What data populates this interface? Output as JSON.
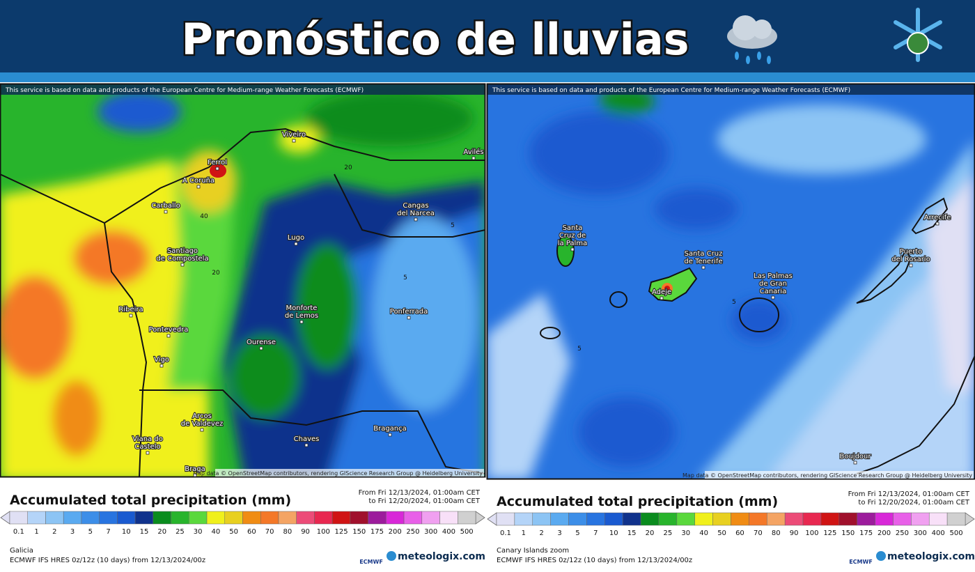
{
  "header": {
    "title": "Pronóstico de lluvias"
  },
  "panels": [
    {
      "attribution": "This service is based on data and products of the European Centre for Medium-range Weather Forecasts (ECMWF)",
      "places": [
        {
          "lines": [
            "Ferrol"
          ]
        },
        {
          "lines": [
            "A Coruña"
          ]
        },
        {
          "lines": [
            "Viveiro"
          ]
        },
        {
          "lines": [
            "Avilés"
          ]
        },
        {
          "lines": [
            "Carballo"
          ]
        },
        {
          "lines": [
            "Cangas",
            "del Narcea"
          ]
        },
        {
          "lines": [
            "Lugo"
          ]
        },
        {
          "lines": [
            "Santiago",
            "de Compostela"
          ]
        },
        {
          "lines": [
            "Ribeira"
          ]
        },
        {
          "lines": [
            "Monforte",
            "de Lemos"
          ]
        },
        {
          "lines": [
            "Pontevedra"
          ]
        },
        {
          "lines": [
            "Ponferrada"
          ]
        },
        {
          "lines": [
            "Ourense"
          ]
        },
        {
          "lines": [
            "Vigo"
          ]
        },
        {
          "lines": [
            "Arcos",
            "de Valdevez"
          ]
        },
        {
          "lines": [
            "Bragança"
          ]
        },
        {
          "lines": [
            "Chaves"
          ]
        },
        {
          "lines": [
            "Viana do",
            "Castelo"
          ]
        },
        {
          "lines": [
            "Braga"
          ]
        }
      ],
      "contours": [
        "40",
        "20",
        "20",
        "5",
        "5"
      ],
      "map_credit": "Map data © OpenStreetMap contributors, rendering GIScience Research Group @ Heidelberg University",
      "legend": {
        "title": "Accumulated total precipitation (mm)",
        "from": "From Fri 12/13/2024, 01:00am CET",
        "to": "to Fri 12/20/2024, 01:00am CET",
        "scale": [
          0.1,
          1,
          2,
          3,
          5,
          7,
          10,
          15,
          20,
          25,
          30,
          40,
          50,
          60,
          70,
          80,
          90,
          100,
          125,
          150,
          175,
          200,
          250,
          300,
          400,
          500
        ],
        "colors": [
          "#e0e0f4",
          "#b4d4f8",
          "#8cc4f4",
          "#5aaaf0",
          "#3c8ee8",
          "#2874e0",
          "#1a5ad0",
          "#10328c",
          "#0a8c1e",
          "#28b42c",
          "#5ad83c",
          "#f0f01c",
          "#e8d020",
          "#f08c14",
          "#f47828",
          "#f4a464",
          "#ec4c78",
          "#e82850",
          "#d01414",
          "#a0102c",
          "#9c1c9c",
          "#d828d8",
          "#e860e8",
          "#f0a0f0",
          "#f8e0f8",
          "#d0d0d0"
        ]
      },
      "region": "Galicia",
      "model": "ECMWF IFS HRES 0z/12z (10 days) from 12/13/2024/00z",
      "ecmwf": "ECMWF",
      "brand": "meteologix.com"
    },
    {
      "attribution": "This service is based on data and products of the European Centre for Medium-range Weather Forecasts (ECMWF)",
      "places": [
        {
          "lines": [
            "Santa",
            "Cruz de",
            "la Palma"
          ]
        },
        {
          "lines": [
            "Santa Cruz",
            "de Tenerife"
          ]
        },
        {
          "lines": [
            "Adeje"
          ]
        },
        {
          "lines": [
            "Las Palmas",
            "de Gran",
            "Canaria"
          ]
        },
        {
          "lines": [
            "Puerto",
            "del Rosario"
          ]
        },
        {
          "lines": [
            "Arrecife"
          ]
        },
        {
          "lines": [
            "Boujdour"
          ]
        }
      ],
      "contours": [
        "5",
        "5"
      ],
      "map_credit": "Map data © OpenStreetMap contributors, rendering GIScience Research Group @ Heidelberg University",
      "legend": {
        "title": "Accumulated total precipitation (mm)",
        "from": "From Fri 12/13/2024, 01:00am CET",
        "to": "to Fri 12/20/2024, 01:00am CET",
        "scale": [
          0.1,
          1,
          2,
          3,
          5,
          7,
          10,
          15,
          20,
          25,
          30,
          40,
          50,
          60,
          70,
          80,
          90,
          100,
          125,
          150,
          175,
          200,
          250,
          300,
          400,
          500
        ],
        "colors": [
          "#e0e0f4",
          "#b4d4f8",
          "#8cc4f4",
          "#5aaaf0",
          "#3c8ee8",
          "#2874e0",
          "#1a5ad0",
          "#10328c",
          "#0a8c1e",
          "#28b42c",
          "#5ad83c",
          "#f0f01c",
          "#e8d020",
          "#f08c14",
          "#f47828",
          "#f4a464",
          "#ec4c78",
          "#e82850",
          "#d01414",
          "#a0102c",
          "#9c1c9c",
          "#d828d8",
          "#e860e8",
          "#f0a0f0",
          "#f8e0f8",
          "#d0d0d0"
        ]
      },
      "region": "Canary Islands zoom",
      "model": "ECMWF IFS HRES 0z/12z (10 days) from 12/13/2024/00z",
      "ecmwf": "ECMWF",
      "brand": "meteologix.com"
    }
  ]
}
